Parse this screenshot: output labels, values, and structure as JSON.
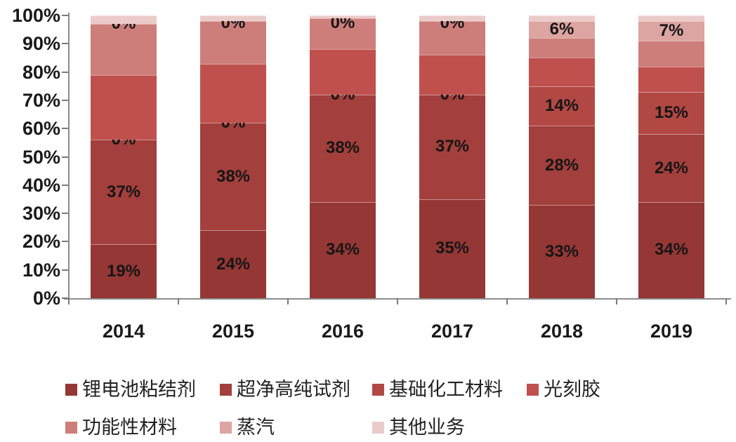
{
  "chart_data": {
    "type": "bar",
    "variant": "stacked-100-percent-column",
    "title": "",
    "xlabel": "",
    "ylabel": "",
    "grid": false,
    "legend_position": "bottom",
    "categories": [
      "2014",
      "2015",
      "2016",
      "2017",
      "2018",
      "2019"
    ],
    "series": [
      {
        "name": "锂电池粘结剂",
        "color": "#953735",
        "values": [
          19,
          24,
          34,
          35,
          33,
          34
        ],
        "labeled": true
      },
      {
        "name": "超净高纯试剂",
        "color": "#A33F3C",
        "values": [
          37,
          38,
          38,
          37,
          28,
          24
        ],
        "labeled": true
      },
      {
        "name": "基础化工材料",
        "color": "#B24844",
        "values": [
          0,
          0,
          0,
          0,
          14,
          15
        ],
        "labeled": true
      },
      {
        "name": "光刻胶",
        "color": "#C0504D",
        "values": [
          23,
          21,
          16,
          14,
          10,
          9
        ],
        "labeled": false
      },
      {
        "name": "功能性材料",
        "color": "#CE7E7A",
        "values": [
          18,
          15,
          11,
          12,
          7,
          9
        ],
        "labeled": false
      },
      {
        "name": "蒸汽",
        "color": "#DCA5A2",
        "values": [
          0,
          0,
          0,
          0,
          6,
          7
        ],
        "labeled": true
      },
      {
        "name": "其他业务",
        "color": "#EACBCA",
        "values": [
          3,
          2,
          1,
          2,
          2,
          2
        ],
        "labeled": false
      }
    ],
    "visible_segment_labels": {
      "2014": [
        "19%",
        "37%",
        "0%",
        "0%"
      ],
      "2015": [
        "24%",
        "38%",
        "0%",
        "0%"
      ],
      "2016": [
        "34%",
        "38%",
        "0%",
        "0%"
      ],
      "2017": [
        "35%",
        "37%",
        "0%",
        "0%"
      ],
      "2018": [
        "33%",
        "28%",
        "14%",
        "6%"
      ],
      "2019": [
        "34%",
        "24%",
        "15%",
        "7%"
      ]
    },
    "y_axis": {
      "min": 0,
      "max": 100,
      "tick_step": 10,
      "tick_labels": [
        "0%",
        "10%",
        "20%",
        "30%",
        "40%",
        "50%",
        "60%",
        "70%",
        "80%",
        "90%",
        "100%"
      ]
    },
    "legend_rows": [
      [
        "锂电池粘结剂",
        "超净高纯试剂",
        "基础化工材料",
        "光刻胶"
      ],
      [
        "功能性材料",
        "蒸汽",
        "其他业务"
      ]
    ]
  },
  "colors": {
    "axis_line": "#8c8c8c",
    "tick": "#7a7a7a",
    "text": "#1a1a1a",
    "background": "#ffffff"
  }
}
